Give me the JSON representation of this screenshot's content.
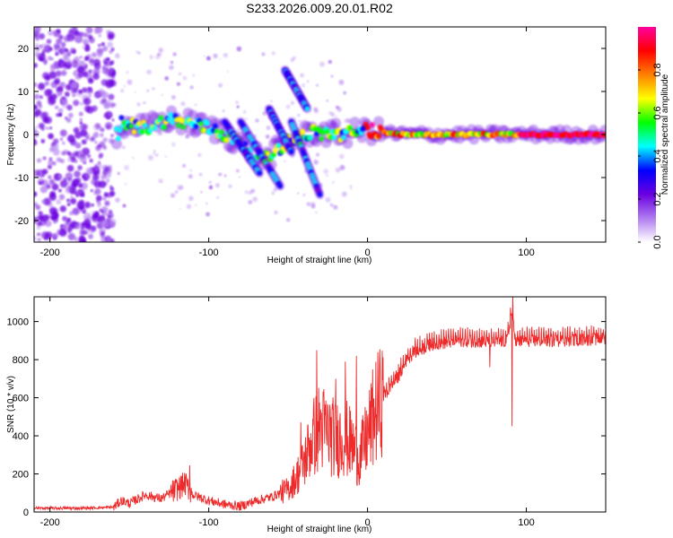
{
  "title": "S233.2026.009.20.01.R02",
  "chart_data": [
    {
      "type": "heatmap",
      "xlabel": "Height of straight line (km)",
      "ylabel": "Frequency (Hz)",
      "xlim": [
        -210,
        150
      ],
      "ylim": [
        -25,
        25
      ],
      "xticks": [
        -200,
        -100,
        0,
        100
      ],
      "yticks": [
        -20,
        -10,
        0,
        10,
        20
      ],
      "colorbar": {
        "label": "Normalized spectral amplitude",
        "range": [
          0,
          1
        ],
        "ticks": [
          "0.0",
          "0.2",
          "0.4",
          "0.6",
          "0.8"
        ],
        "colors": [
          "#ffffff",
          "#b07cf0",
          "#6a00e0",
          "#0000ff",
          "#00ffff",
          "#00ff00",
          "#ffff00",
          "#ff8000",
          "#ff0000",
          "#ff00a0"
        ]
      },
      "features": {
        "noise_region_km": [
          -210,
          -160
        ],
        "main_band": [
          {
            "x": -155,
            "f": 2.5
          },
          {
            "x": -140,
            "f": 1.5
          },
          {
            "x": -125,
            "f": 3.5
          },
          {
            "x": -110,
            "f": 2.5
          },
          {
            "x": -95,
            "f": 1.0
          },
          {
            "x": -80,
            "f": -2.0
          },
          {
            "x": -65,
            "f": -6.0
          },
          {
            "x": -50,
            "f": -1.5
          },
          {
            "x": -35,
            "f": 0.5
          },
          {
            "x": -15,
            "f": 0.0
          },
          {
            "x": 0,
            "f": 1.0
          },
          {
            "x": 20,
            "f": 0.0
          },
          {
            "x": 60,
            "f": 0.0
          },
          {
            "x": 85,
            "f": 0.0
          },
          {
            "x": 150,
            "f": 0.0
          }
        ],
        "streaks": [
          {
            "x0": -90,
            "f0": 3,
            "x1": -68,
            "f1": -9
          },
          {
            "x0": -80,
            "f0": 3,
            "x1": -55,
            "f1": -12
          },
          {
            "x0": -62,
            "f0": 6,
            "x1": -48,
            "f1": -4
          },
          {
            "x0": -52,
            "f0": 15,
            "x1": -38,
            "f1": 6
          },
          {
            "x0": -48,
            "f0": 3,
            "x1": -30,
            "f1": -14
          }
        ]
      }
    },
    {
      "type": "line",
      "xlabel": "Height of straight line (km)",
      "ylabel": "SNR (10 * v/v)",
      "xlim": [
        -210,
        150
      ],
      "ylim": [
        0,
        1130
      ],
      "xticks": [
        -200,
        -100,
        0,
        100
      ],
      "yticks": [
        0,
        200,
        400,
        600,
        800,
        1000
      ],
      "color": "#ee2a2a",
      "series": [
        {
          "name": "SNR",
          "x": [
            -210,
            -180,
            -160,
            -155,
            -150,
            -140,
            -130,
            -120,
            -115,
            -110,
            -100,
            -90,
            -80,
            -70,
            -60,
            -50,
            -45,
            -40,
            -35,
            -30,
            -25,
            -20,
            -15,
            -10,
            -5,
            0,
            5,
            10,
            15,
            20,
            25,
            30,
            40,
            60,
            80,
            88,
            91,
            93,
            100,
            120,
            150
          ],
          "y": [
            20,
            20,
            25,
            60,
            45,
            90,
            70,
            120,
            150,
            90,
            60,
            40,
            30,
            60,
            80,
            120,
            180,
            260,
            380,
            450,
            420,
            380,
            400,
            350,
            280,
            400,
            530,
            600,
            660,
            720,
            800,
            840,
            880,
            900,
            890,
            900,
            1060,
            890,
            900,
            900,
            910
          ],
          "spikes": [
            {
              "x": -32,
              "y": 850
            },
            {
              "x": -14,
              "y": 790
            },
            {
              "x": -7,
              "y": 820
            },
            {
              "x": -20,
              "y": 700
            },
            {
              "x": -42,
              "y": 470
            },
            {
              "x": -112,
              "y": 245
            },
            {
              "x": 91,
              "y": 450
            },
            {
              "x": 91.5,
              "y": 1130
            },
            {
              "x": 77,
              "y": 760
            }
          ]
        }
      ]
    }
  ]
}
